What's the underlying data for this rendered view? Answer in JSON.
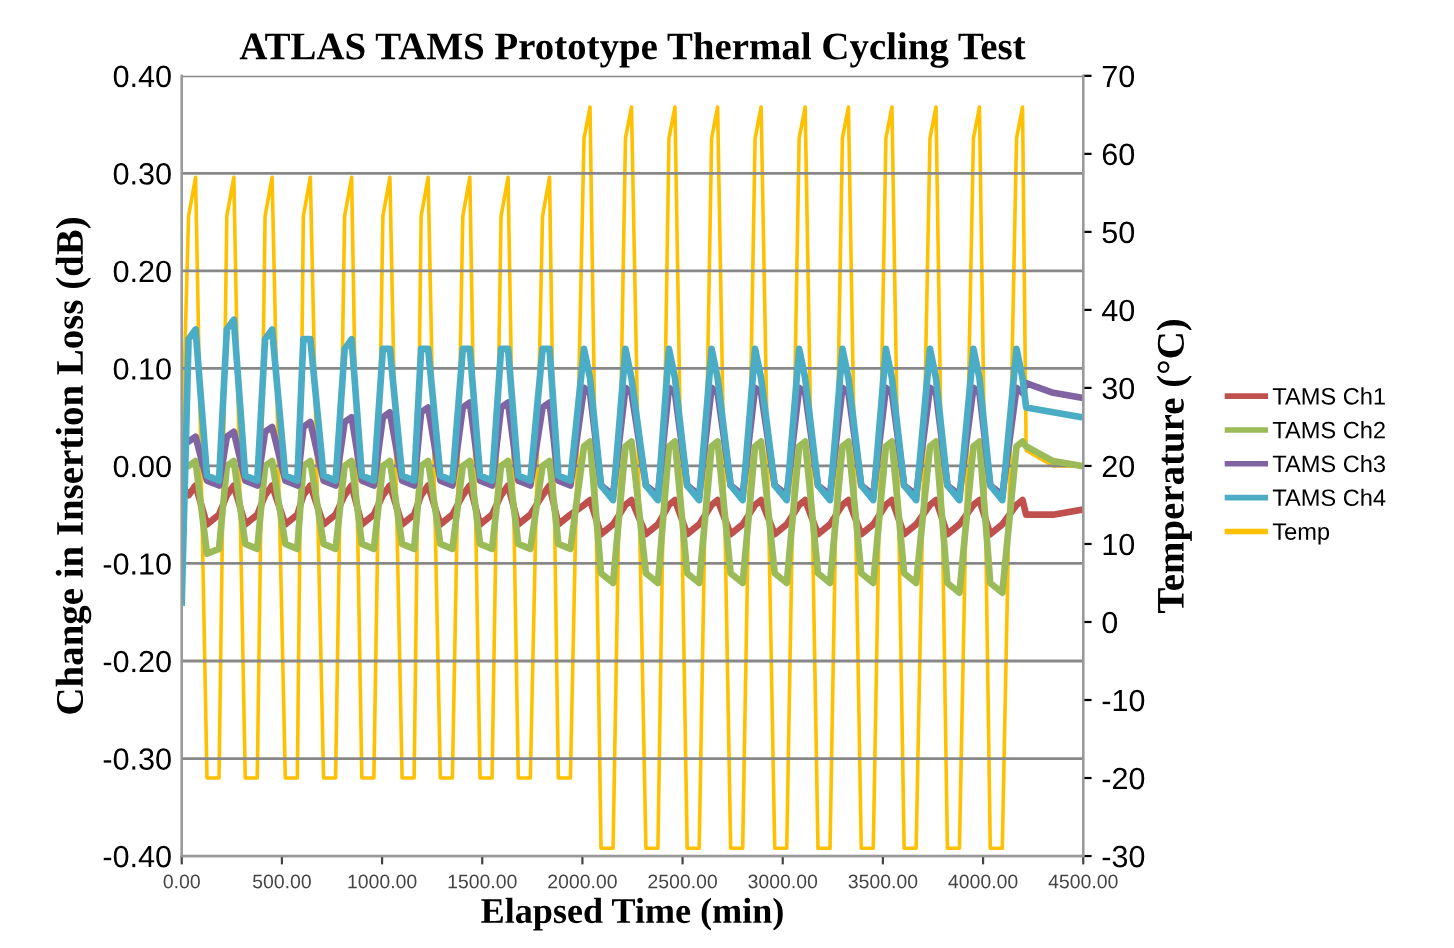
{
  "chart_data": {
    "type": "line",
    "title": "ATLAS TAMS Prototype Thermal Cycling Test",
    "xlabel": "Elapsed Time (min)",
    "ylabel": "Change in Insertion Loss (dB)",
    "y2label": "Temperature (°C)",
    "x": [
      0,
      34,
      69,
      126,
      186,
      225,
      260,
      317,
      377,
      416,
      451,
      517,
      577,
      607,
      642,
      708,
      768,
      813,
      848,
      899,
      959,
      1004,
      1039,
      1100,
      1160,
      1195,
      1230,
      1291,
      1351,
      1403,
      1438,
      1489,
      1549,
      1594,
      1629,
      1680,
      1740,
      1801,
      1836,
      1880,
      1940,
      2008,
      2038,
      2093,
      2153,
      2215,
      2245,
      2317,
      2377,
      2432,
      2462,
      2523,
      2583,
      2645,
      2675,
      2740,
      2800,
      2862,
      2892,
      2960,
      3020,
      3082,
      3112,
      3176,
      3236,
      3298,
      3328,
      3392,
      3452,
      3515,
      3545,
      3606,
      3666,
      3735,
      3765,
      3822,
      3882,
      3952,
      3982,
      4036,
      4096,
      4167,
      4197,
      4215,
      4350,
      4490
    ],
    "series": [
      {
        "name": "TAMS Ch1",
        "color": "#c0504d",
        "values": [
          -0.02,
          -0.03,
          -0.02,
          -0.06,
          -0.05,
          -0.03,
          -0.02,
          -0.06,
          -0.05,
          -0.03,
          -0.02,
          -0.06,
          -0.05,
          -0.03,
          -0.02,
          -0.06,
          -0.05,
          -0.03,
          -0.02,
          -0.06,
          -0.05,
          -0.03,
          -0.02,
          -0.06,
          -0.05,
          -0.03,
          -0.02,
          -0.06,
          -0.05,
          -0.03,
          -0.02,
          -0.06,
          -0.05,
          -0.03,
          -0.02,
          -0.06,
          -0.05,
          -0.03,
          -0.02,
          -0.06,
          -0.05,
          -0.04,
          -0.035,
          -0.07,
          -0.06,
          -0.04,
          -0.035,
          -0.07,
          -0.06,
          -0.04,
          -0.035,
          -0.07,
          -0.06,
          -0.04,
          -0.035,
          -0.07,
          -0.06,
          -0.04,
          -0.035,
          -0.07,
          -0.06,
          -0.04,
          -0.035,
          -0.07,
          -0.06,
          -0.04,
          -0.035,
          -0.07,
          -0.06,
          -0.04,
          -0.035,
          -0.07,
          -0.06,
          -0.04,
          -0.035,
          -0.07,
          -0.06,
          -0.04,
          -0.035,
          -0.07,
          -0.06,
          -0.04,
          -0.035,
          -0.05,
          -0.05,
          -0.045
        ]
      },
      {
        "name": "TAMS Ch2",
        "color": "#9bbb59",
        "values": [
          0.0,
          0.0,
          0.005,
          -0.09,
          -0.085,
          0.0,
          0.005,
          -0.08,
          -0.085,
          0.0,
          0.005,
          -0.08,
          -0.085,
          0.0,
          0.005,
          -0.08,
          -0.085,
          0.0,
          0.005,
          -0.08,
          -0.085,
          0.0,
          0.005,
          -0.08,
          -0.085,
          0.0,
          0.005,
          -0.08,
          -0.085,
          0.0,
          0.005,
          -0.08,
          -0.085,
          0.0,
          0.005,
          -0.08,
          -0.085,
          0.0,
          0.005,
          -0.08,
          -0.085,
          0.02,
          0.025,
          -0.11,
          -0.12,
          0.02,
          0.025,
          -0.11,
          -0.12,
          0.02,
          0.025,
          -0.11,
          -0.12,
          0.02,
          0.025,
          -0.11,
          -0.12,
          0.02,
          0.025,
          -0.11,
          -0.12,
          0.02,
          0.025,
          -0.11,
          -0.12,
          0.02,
          0.025,
          -0.11,
          -0.12,
          0.02,
          0.025,
          -0.11,
          -0.12,
          0.02,
          0.025,
          -0.12,
          -0.13,
          0.02,
          0.025,
          -0.12,
          -0.13,
          0.02,
          0.025,
          0.02,
          0.005,
          0.0
        ]
      },
      {
        "name": "TAMS Ch3",
        "color": "#8064a2",
        "values": [
          0.02,
          0.025,
          0.03,
          -0.015,
          -0.02,
          0.03,
          0.035,
          -0.015,
          -0.02,
          0.035,
          0.04,
          -0.015,
          -0.02,
          0.04,
          0.045,
          -0.015,
          -0.02,
          0.045,
          0.05,
          -0.015,
          -0.02,
          0.05,
          0.055,
          -0.015,
          -0.02,
          0.055,
          0.06,
          -0.015,
          -0.02,
          0.06,
          0.065,
          -0.015,
          -0.02,
          0.06,
          0.065,
          -0.015,
          -0.02,
          0.06,
          0.065,
          -0.015,
          -0.02,
          0.08,
          0.075,
          -0.02,
          -0.03,
          0.08,
          0.075,
          -0.02,
          -0.03,
          0.08,
          0.075,
          -0.02,
          -0.03,
          0.08,
          0.075,
          -0.02,
          -0.03,
          0.08,
          0.075,
          -0.02,
          -0.03,
          0.08,
          0.075,
          -0.02,
          -0.03,
          0.08,
          0.075,
          -0.02,
          -0.03,
          0.08,
          0.075,
          -0.02,
          -0.03,
          0.08,
          0.075,
          -0.02,
          -0.03,
          0.08,
          0.075,
          -0.02,
          -0.03,
          0.08,
          0.075,
          0.085,
          0.075,
          0.07
        ]
      },
      {
        "name": "TAMS Ch4",
        "color": "#4bacc6",
        "values": [
          -0.14,
          0.13,
          0.14,
          -0.01,
          -0.015,
          0.14,
          0.15,
          -0.01,
          -0.015,
          0.13,
          0.14,
          -0.01,
          -0.015,
          0.13,
          0.13,
          -0.01,
          -0.015,
          0.12,
          0.13,
          -0.01,
          -0.015,
          0.12,
          0.12,
          -0.01,
          -0.015,
          0.12,
          0.12,
          -0.01,
          -0.015,
          0.12,
          0.12,
          -0.01,
          -0.015,
          0.12,
          0.12,
          -0.01,
          -0.015,
          0.12,
          0.12,
          -0.01,
          -0.015,
          0.12,
          0.09,
          -0.02,
          -0.035,
          0.12,
          0.09,
          -0.02,
          -0.035,
          0.12,
          0.09,
          -0.02,
          -0.035,
          0.12,
          0.09,
          -0.02,
          -0.035,
          0.12,
          0.09,
          -0.02,
          -0.035,
          0.12,
          0.09,
          -0.02,
          -0.035,
          0.12,
          0.09,
          -0.02,
          -0.035,
          0.12,
          0.09,
          -0.02,
          -0.035,
          0.12,
          0.09,
          -0.02,
          -0.035,
          0.12,
          0.09,
          -0.02,
          -0.035,
          0.12,
          0.09,
          0.06,
          0.055,
          0.05
        ]
      },
      {
        "name": "Temp",
        "color": "#ffc000",
        "axis": "y2",
        "values": [
          20,
          52,
          57,
          -20,
          -20,
          52,
          57,
          -20,
          -20,
          52,
          57,
          -20,
          -20,
          52,
          57,
          -20,
          -20,
          52,
          57,
          -20,
          -20,
          52,
          57,
          -20,
          -20,
          52,
          57,
          -20,
          -20,
          52,
          57,
          -20,
          -20,
          52,
          57,
          -20,
          -20,
          52,
          57,
          -20,
          -20,
          62,
          66,
          -29,
          -29,
          62,
          66,
          -29,
          -29,
          62,
          66,
          -29,
          -29,
          62,
          66,
          -29,
          -29,
          62,
          66,
          -29,
          -29,
          62,
          66,
          -29,
          -29,
          62,
          66,
          -29,
          -29,
          62,
          66,
          -29,
          -29,
          62,
          66,
          -29,
          -29,
          62,
          66,
          -29,
          -29,
          62,
          66,
          22,
          20,
          20
        ]
      }
    ],
    "xlim": [
      0,
      4500
    ],
    "xticks": [
      {
        "value": 0,
        "label": "0.00"
      },
      {
        "value": 500,
        "label": "500.00"
      },
      {
        "value": 1000,
        "label": "1000.00"
      },
      {
        "value": 1500,
        "label": "1500.00"
      },
      {
        "value": 2000,
        "label": "2000.00"
      },
      {
        "value": 2500,
        "label": "2500.00"
      },
      {
        "value": 3000,
        "label": "3000.00"
      },
      {
        "value": 3500,
        "label": "3500.00"
      },
      {
        "value": 4000,
        "label": "4000.00"
      },
      {
        "value": 4500,
        "label": "4500.00"
      }
    ],
    "ylim": [
      -0.4,
      0.4
    ],
    "yticks": [
      {
        "value": -0.4,
        "label": "-0.40"
      },
      {
        "value": -0.3,
        "label": "-0.30"
      },
      {
        "value": -0.2,
        "label": "-0.20"
      },
      {
        "value": -0.1,
        "label": "-0.10"
      },
      {
        "value": 0,
        "label": "0.00"
      },
      {
        "value": 0.1,
        "label": "0.10"
      },
      {
        "value": 0.2,
        "label": "0.20"
      },
      {
        "value": 0.3,
        "label": "0.30"
      },
      {
        "value": 0.4,
        "label": "0.40"
      }
    ],
    "y2lim": [
      -30,
      70
    ],
    "y2ticks": [
      -30,
      -20,
      -10,
      0,
      10,
      20,
      30,
      40,
      50,
      60,
      70
    ],
    "grid": "y",
    "legend": "right",
    "marker": "none",
    "line_style": "solid"
  }
}
